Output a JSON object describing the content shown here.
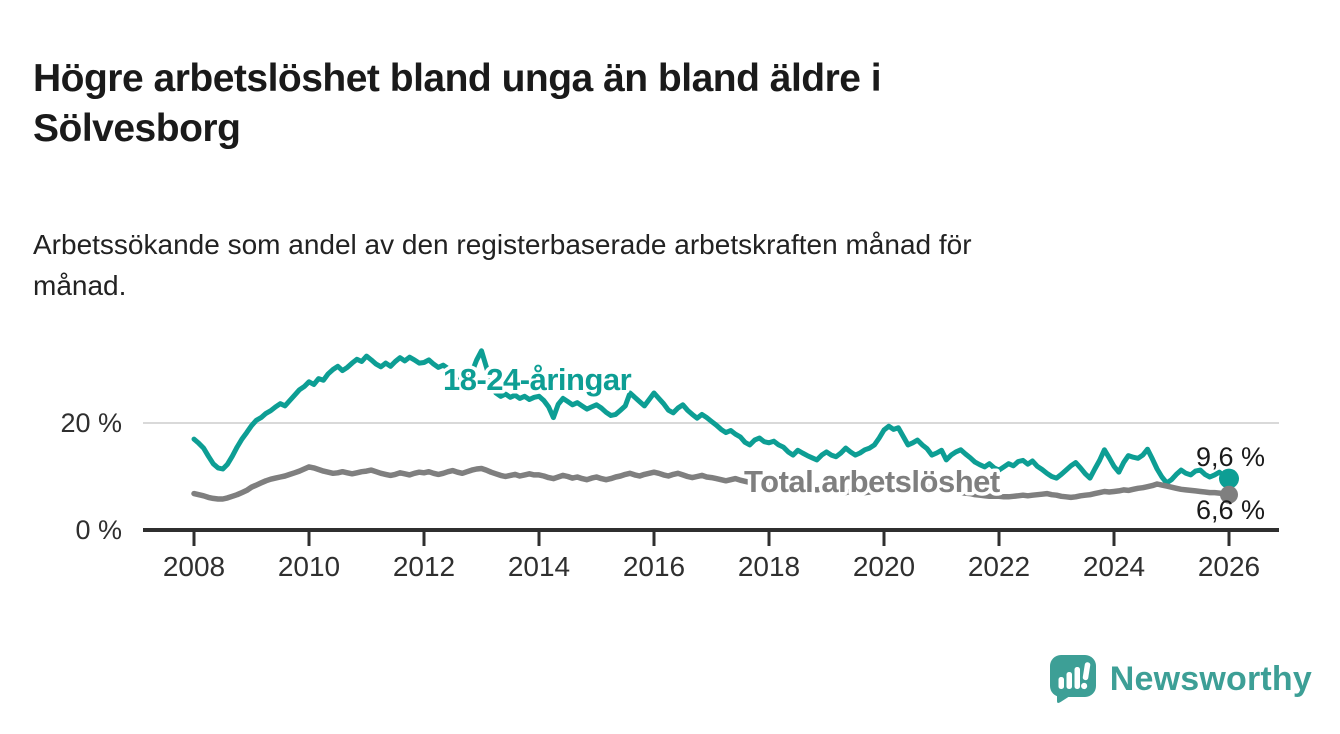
{
  "header": {
    "title_line1": "Högre arbetslöshet bland unga än bland äldre i",
    "title_line2": "Sölvesborg",
    "subtitle_line1": "Arbetssökande som andel av den registerbaserade arbetskraften månad för",
    "subtitle_line2": "månad."
  },
  "chart_data": {
    "type": "line",
    "x_start_year": 2008,
    "x_months_per_point": 1,
    "x_tick_labels": [
      "2008",
      "2010",
      "2012",
      "2014",
      "2016",
      "2018",
      "2020",
      "2022",
      "2024",
      "2026"
    ],
    "y_ticks": [
      {
        "value": 0,
        "label": "0 %"
      },
      {
        "value": 20,
        "label": "20 %"
      }
    ],
    "ylim": [
      0,
      35
    ],
    "grid": "single horizontal gridline at 20 %",
    "legend_position": "inline labels on lines",
    "colors": {
      "youth": "#0d9e94",
      "total": "#7f7f7f",
      "axis": "#2f2f2f",
      "gridline": "#d9d9d9",
      "halo": "#ffffff"
    },
    "series": [
      {
        "name": "18-24-åringar",
        "color": "#0d9e94",
        "end_label": "9,6 %",
        "end_value": 9.6,
        "values": [
          17.0,
          16.2,
          15.3,
          13.8,
          12.4,
          11.6,
          11.4,
          12.3,
          13.8,
          15.5,
          17.0,
          18.2,
          19.5,
          20.5,
          21.0,
          21.8,
          22.3,
          23.0,
          23.6,
          23.2,
          24.2,
          25.2,
          26.2,
          26.8,
          27.7,
          27.2,
          28.3,
          28.0,
          29.2,
          30.0,
          30.6,
          29.8,
          30.4,
          31.2,
          31.9,
          31.5,
          32.5,
          31.8,
          31.0,
          30.5,
          31.2,
          30.6,
          31.5,
          32.2,
          31.6,
          32.3,
          31.8,
          31.2,
          31.3,
          31.8,
          31.0,
          30.4,
          30.8,
          30.2,
          29.4,
          28.4,
          27.1,
          28.0,
          29.5,
          31.8,
          33.5,
          30.5,
          27.5,
          25.6,
          25.0,
          25.4,
          24.8,
          25.2,
          24.6,
          25.0,
          24.4,
          24.8,
          25.0,
          24.2,
          23.0,
          21.0,
          23.5,
          24.6,
          24.0,
          23.4,
          23.8,
          23.2,
          22.6,
          23.0,
          23.4,
          22.8,
          22.0,
          21.4,
          21.6,
          22.4,
          23.2,
          25.6,
          24.8,
          24.0,
          23.2,
          24.4,
          25.6,
          24.6,
          23.6,
          22.4,
          21.9,
          22.8,
          23.4,
          22.4,
          21.6,
          20.9,
          21.6,
          21.0,
          20.3,
          19.6,
          18.8,
          18.2,
          18.6,
          17.9,
          17.4,
          16.4,
          15.9,
          16.8,
          17.2,
          16.5,
          16.3,
          16.6,
          15.9,
          15.5,
          14.6,
          14.0,
          14.9,
          14.4,
          13.9,
          13.5,
          13.1,
          14.0,
          14.6,
          14.0,
          13.7,
          14.4,
          15.3,
          14.6,
          14.0,
          14.4,
          15.0,
          15.3,
          15.9,
          17.2,
          18.7,
          19.4,
          18.8,
          19.1,
          17.5,
          15.9,
          16.3,
          16.8,
          15.9,
          15.2,
          14.0,
          14.4,
          14.9,
          13.1,
          14.0,
          14.6,
          15.0,
          14.2,
          13.5,
          12.7,
          12.2,
          11.8,
          12.4,
          11.6,
          11.2,
          11.8,
          12.4,
          12.0,
          12.8,
          13.0,
          12.3,
          12.9,
          11.9,
          11.3,
          10.6,
          10.0,
          9.7,
          10.4,
          11.2,
          12.0,
          12.6,
          11.6,
          10.5,
          9.7,
          11.4,
          13.0,
          15.0,
          13.5,
          11.9,
          10.8,
          12.6,
          13.9,
          13.6,
          13.4,
          14.0,
          15.1,
          13.3,
          11.4,
          9.9,
          8.8,
          9.4,
          10.4,
          11.2,
          10.6,
          10.3,
          11.0,
          11.2,
          10.4,
          9.9,
          10.3,
          10.8,
          10.1,
          9.6
        ]
      },
      {
        "name": "Total arbetslöshet",
        "color": "#7f7f7f",
        "end_label": "6,6 %",
        "end_value": 6.6,
        "values": [
          6.8,
          6.6,
          6.4,
          6.1,
          5.9,
          5.8,
          5.8,
          6.0,
          6.3,
          6.6,
          7.0,
          7.4,
          8.0,
          8.4,
          8.8,
          9.2,
          9.5,
          9.7,
          9.9,
          10.1,
          10.4,
          10.7,
          11.0,
          11.4,
          11.8,
          11.6,
          11.3,
          11.0,
          10.8,
          10.6,
          10.7,
          10.9,
          10.7,
          10.5,
          10.7,
          10.9,
          11.0,
          11.2,
          10.9,
          10.6,
          10.4,
          10.2,
          10.4,
          10.7,
          10.5,
          10.3,
          10.6,
          10.8,
          10.7,
          10.9,
          10.6,
          10.4,
          10.6,
          10.9,
          11.1,
          10.8,
          10.6,
          10.9,
          11.2,
          11.4,
          11.5,
          11.2,
          10.8,
          10.5,
          10.2,
          10.0,
          10.2,
          10.4,
          10.1,
          10.3,
          10.5,
          10.3,
          10.3,
          10.1,
          9.8,
          9.6,
          9.9,
          10.2,
          10.0,
          9.7,
          9.9,
          9.6,
          9.4,
          9.7,
          9.9,
          9.6,
          9.4,
          9.6,
          9.9,
          10.1,
          10.4,
          10.6,
          10.3,
          10.1,
          10.4,
          10.6,
          10.8,
          10.6,
          10.3,
          10.1,
          10.4,
          10.6,
          10.3,
          10.0,
          9.8,
          10.0,
          10.2,
          9.9,
          9.8,
          9.6,
          9.4,
          9.2,
          9.4,
          9.6,
          9.3,
          9.1,
          8.9,
          9.1,
          9.3,
          9.1,
          9.0,
          8.8,
          8.6,
          8.4,
          8.2,
          8.0,
          8.2,
          8.0,
          7.8,
          7.6,
          7.5,
          7.7,
          7.6,
          7.4,
          7.2,
          7.1,
          7.0,
          7.2,
          7.4,
          7.2,
          7.0,
          7.1,
          7.3,
          7.6,
          8.0,
          8.4,
          8.8,
          9.1,
          9.3,
          9.0,
          8.8,
          8.6,
          8.4,
          8.2,
          8.0,
          7.9,
          7.8,
          7.6,
          7.4,
          7.2,
          7.0,
          6.9,
          6.8,
          6.6,
          6.5,
          6.4,
          6.3,
          6.3,
          6.3,
          6.2,
          6.2,
          6.3,
          6.4,
          6.5,
          6.4,
          6.5,
          6.6,
          6.7,
          6.8,
          6.6,
          6.5,
          6.3,
          6.2,
          6.1,
          6.2,
          6.4,
          6.5,
          6.6,
          6.8,
          7.0,
          7.2,
          7.1,
          7.2,
          7.3,
          7.5,
          7.4,
          7.6,
          7.8,
          7.9,
          8.1,
          8.3,
          8.6,
          8.4,
          8.2,
          8.0,
          7.8,
          7.6,
          7.5,
          7.4,
          7.3,
          7.2,
          7.1,
          7.0,
          7.0,
          6.9,
          6.8,
          6.6
        ]
      }
    ]
  },
  "branding": {
    "logo_text": "Newsworthy",
    "logo_color": "#3d9f96",
    "logo_icon": "newsworthy-speech-bubble-bar-chart-icon"
  }
}
